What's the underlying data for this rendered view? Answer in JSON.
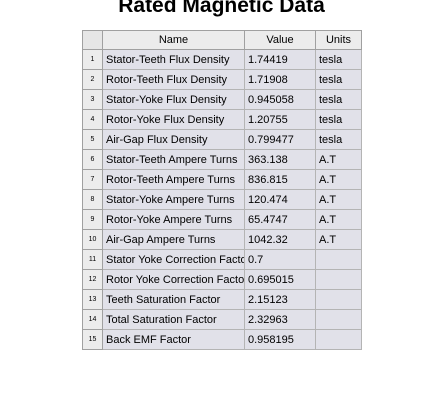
{
  "title": "Rated Magnetic Data",
  "table": {
    "headers": {
      "index": "",
      "name": "Name",
      "value": "Value",
      "units": "Units"
    },
    "rows": [
      {
        "index": "1",
        "name": "Stator-Teeth Flux Density",
        "value": "1.74419",
        "units": "tesla"
      },
      {
        "index": "2",
        "name": "Rotor-Teeth Flux Density",
        "value": "1.71908",
        "units": "tesla"
      },
      {
        "index": "3",
        "name": "Stator-Yoke Flux Density",
        "value": "0.945058",
        "units": "tesla"
      },
      {
        "index": "4",
        "name": "Rotor-Yoke Flux Density",
        "value": "1.20755",
        "units": "tesla"
      },
      {
        "index": "5",
        "name": "Air-Gap Flux Density",
        "value": "0.799477",
        "units": "tesla"
      },
      {
        "index": "6",
        "name": "Stator-Teeth Ampere Turns",
        "value": "363.138",
        "units": "A.T"
      },
      {
        "index": "7",
        "name": "Rotor-Teeth Ampere Turns",
        "value": "836.815",
        "units": "A.T"
      },
      {
        "index": "8",
        "name": "Stator-Yoke Ampere Turns",
        "value": "120.474",
        "units": "A.T"
      },
      {
        "index": "9",
        "name": "Rotor-Yoke Ampere Turns",
        "value": "65.4747",
        "units": "A.T"
      },
      {
        "index": "10",
        "name": "Air-Gap Ampere Turns",
        "value": "1042.32",
        "units": "A.T"
      },
      {
        "index": "11",
        "name": "Stator Yoke Correction Factor",
        "value": "0.7",
        "units": ""
      },
      {
        "index": "12",
        "name": "Rotor Yoke Correction Factor",
        "value": "0.695015",
        "units": ""
      },
      {
        "index": "13",
        "name": "Teeth Saturation Factor",
        "value": "2.15123",
        "units": ""
      },
      {
        "index": "14",
        "name": "Total Saturation Factor",
        "value": "2.32963",
        "units": ""
      },
      {
        "index": "15",
        "name": "Back EMF Factor",
        "value": "0.958195",
        "units": ""
      }
    ]
  }
}
